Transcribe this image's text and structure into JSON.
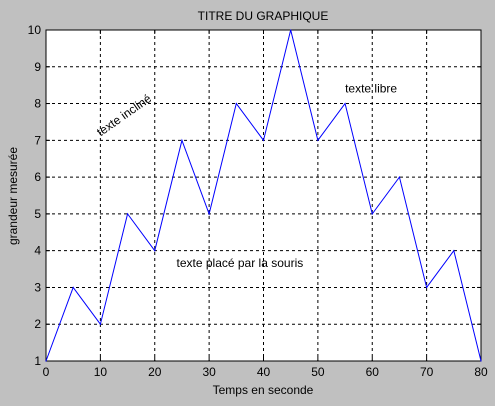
{
  "chart_data": {
    "type": "line",
    "title": "TITRE DU GRAPHIQUE",
    "xlabel": "Temps en seconde",
    "ylabel": "grandeur mesurée",
    "xlim": [
      0,
      80
    ],
    "ylim": [
      1,
      10
    ],
    "xticks": [
      0,
      10,
      20,
      30,
      40,
      50,
      60,
      70,
      80
    ],
    "yticks": [
      1,
      2,
      3,
      4,
      5,
      6,
      7,
      8,
      9,
      10
    ],
    "grid": true,
    "series": [
      {
        "x": [
          0,
          5,
          10,
          15,
          20,
          25,
          30,
          35,
          40,
          45,
          50,
          55,
          60,
          65,
          70,
          75,
          80
        ],
        "y": [
          1,
          3,
          2,
          5,
          4,
          7,
          5,
          8,
          7,
          10,
          7,
          8,
          5,
          6,
          3,
          4,
          1
        ],
        "color": "#0000ff"
      }
    ],
    "annotations": [
      {
        "text": "texte incliné",
        "x": 10,
        "y": 7.1,
        "rotation": -35
      },
      {
        "text": "texte libre",
        "x": 55,
        "y": 8.3,
        "rotation": 0
      },
      {
        "text": "texte placé par la souris",
        "x": 24,
        "y": 3.55,
        "rotation": 0
      }
    ],
    "colors": {
      "figure_background": "#c0c0c0",
      "axes_background": "#ffffff",
      "line": "#0000ff",
      "grid": "#000000",
      "text": "#000000"
    }
  }
}
